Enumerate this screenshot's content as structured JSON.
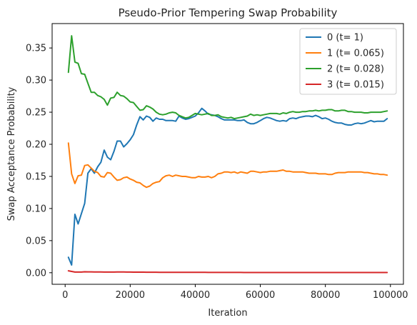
{
  "chart_data": {
    "type": "line",
    "title": "Pseudo-Prior Tempering Swap Probability",
    "xlabel": "Iteration",
    "ylabel": "Swap Acceptance Probability",
    "xlim": [
      -4000,
      104000
    ],
    "ylim": [
      -0.018,
      0.388
    ],
    "xticks": [
      0,
      20000,
      40000,
      60000,
      80000,
      100000
    ],
    "xtick_labels": [
      "0",
      "20000",
      "40000",
      "60000",
      "80000",
      "100000"
    ],
    "yticks": [
      0.0,
      0.05,
      0.1,
      0.15,
      0.2,
      0.25,
      0.3,
      0.35
    ],
    "ytick_labels": [
      "0.00",
      "0.05",
      "0.10",
      "0.15",
      "0.20",
      "0.25",
      "0.30",
      "0.35"
    ],
    "grid": false,
    "legend_position": "top-right",
    "x": [
      1000,
      2000,
      3000,
      4000,
      5000,
      6000,
      7000,
      8000,
      9000,
      10000,
      11000,
      12000,
      13000,
      14000,
      15000,
      16000,
      17000,
      18000,
      19000,
      20000,
      21000,
      22000,
      23000,
      24000,
      25000,
      26000,
      27000,
      28000,
      29000,
      30000,
      31000,
      32000,
      33000,
      34000,
      35000,
      36000,
      37000,
      38000,
      39000,
      40000,
      41000,
      42000,
      43000,
      44000,
      45000,
      46000,
      47000,
      48000,
      49000,
      50000,
      51000,
      52000,
      53000,
      54000,
      55000,
      56000,
      57000,
      58000,
      59000,
      60000,
      61000,
      62000,
      63000,
      64000,
      65000,
      66000,
      67000,
      68000,
      69000,
      70000,
      71000,
      72000,
      73000,
      74000,
      75000,
      76000,
      77000,
      78000,
      79000,
      80000,
      81000,
      82000,
      83000,
      84000,
      85000,
      86000,
      87000,
      88000,
      89000,
      90000,
      91000,
      92000,
      93000,
      94000,
      95000,
      96000,
      97000,
      98000,
      99000
    ],
    "series": [
      {
        "name": "0 (t= 1)",
        "color": "#1f77b4",
        "values": [
          0.024,
          0.012,
          0.091,
          0.076,
          0.092,
          0.108,
          0.155,
          0.162,
          0.155,
          0.165,
          0.172,
          0.191,
          0.18,
          0.176,
          0.189,
          0.205,
          0.205,
          0.196,
          0.201,
          0.207,
          0.215,
          0.23,
          0.243,
          0.238,
          0.244,
          0.242,
          0.236,
          0.241,
          0.239,
          0.239,
          0.237,
          0.237,
          0.237,
          0.236,
          0.244,
          0.241,
          0.239,
          0.24,
          0.242,
          0.244,
          0.249,
          0.256,
          0.252,
          0.247,
          0.246,
          0.245,
          0.243,
          0.24,
          0.238,
          0.238,
          0.238,
          0.238,
          0.237,
          0.237,
          0.238,
          0.234,
          0.232,
          0.232,
          0.234,
          0.237,
          0.24,
          0.242,
          0.241,
          0.239,
          0.237,
          0.236,
          0.237,
          0.236,
          0.24,
          0.241,
          0.24,
          0.242,
          0.243,
          0.244,
          0.244,
          0.243,
          0.245,
          0.243,
          0.24,
          0.241,
          0.239,
          0.236,
          0.234,
          0.233,
          0.233,
          0.231,
          0.23,
          0.23,
          0.232,
          0.233,
          0.232,
          0.233,
          0.235,
          0.237,
          0.235,
          0.236,
          0.236,
          0.236,
          0.24
        ]
      },
      {
        "name": "1 (t= 0.065)",
        "color": "#ff7f0e",
        "values": [
          0.202,
          0.154,
          0.139,
          0.151,
          0.152,
          0.167,
          0.168,
          0.163,
          0.158,
          0.156,
          0.15,
          0.149,
          0.156,
          0.155,
          0.149,
          0.144,
          0.145,
          0.148,
          0.149,
          0.146,
          0.144,
          0.141,
          0.14,
          0.136,
          0.133,
          0.135,
          0.139,
          0.141,
          0.142,
          0.148,
          0.151,
          0.152,
          0.15,
          0.152,
          0.151,
          0.15,
          0.15,
          0.149,
          0.148,
          0.148,
          0.15,
          0.149,
          0.149,
          0.15,
          0.148,
          0.15,
          0.154,
          0.155,
          0.157,
          0.157,
          0.156,
          0.157,
          0.155,
          0.157,
          0.156,
          0.155,
          0.158,
          0.158,
          0.157,
          0.156,
          0.157,
          0.157,
          0.158,
          0.158,
          0.158,
          0.159,
          0.16,
          0.158,
          0.158,
          0.157,
          0.157,
          0.157,
          0.157,
          0.156,
          0.155,
          0.155,
          0.155,
          0.154,
          0.154,
          0.154,
          0.153,
          0.153,
          0.155,
          0.156,
          0.156,
          0.156,
          0.157,
          0.157,
          0.157,
          0.157,
          0.157,
          0.156,
          0.156,
          0.155,
          0.154,
          0.154,
          0.153,
          0.153,
          0.152
        ]
      },
      {
        "name": "2 (t= 0.028)",
        "color": "#2ca02c",
        "values": [
          0.312,
          0.369,
          0.328,
          0.326,
          0.31,
          0.309,
          0.295,
          0.281,
          0.281,
          0.276,
          0.274,
          0.27,
          0.261,
          0.272,
          0.273,
          0.281,
          0.276,
          0.275,
          0.271,
          0.266,
          0.265,
          0.259,
          0.253,
          0.254,
          0.26,
          0.258,
          0.255,
          0.25,
          0.247,
          0.246,
          0.247,
          0.249,
          0.25,
          0.249,
          0.245,
          0.243,
          0.241,
          0.242,
          0.245,
          0.248,
          0.247,
          0.246,
          0.247,
          0.248,
          0.245,
          0.245,
          0.246,
          0.243,
          0.242,
          0.241,
          0.242,
          0.24,
          0.241,
          0.242,
          0.243,
          0.244,
          0.247,
          0.245,
          0.246,
          0.245,
          0.246,
          0.247,
          0.248,
          0.248,
          0.248,
          0.247,
          0.249,
          0.248,
          0.25,
          0.251,
          0.25,
          0.25,
          0.251,
          0.251,
          0.252,
          0.252,
          0.253,
          0.252,
          0.253,
          0.253,
          0.254,
          0.254,
          0.252,
          0.252,
          0.253,
          0.253,
          0.251,
          0.251,
          0.25,
          0.25,
          0.25,
          0.249,
          0.249,
          0.25,
          0.25,
          0.25,
          0.25,
          0.251,
          0.252
        ]
      },
      {
        "name": "3 (t= 0.015)",
        "color": "#d62728",
        "values": [
          0.003,
          0.002,
          0.001,
          0.001,
          0.001,
          0.0015,
          0.0014,
          0.0013,
          0.0012,
          0.0011,
          0.0011,
          0.001,
          0.001,
          0.001,
          0.001,
          0.0012,
          0.0011,
          0.0011,
          0.001,
          0.001,
          0.0009,
          0.0009,
          0.0009,
          0.0009,
          0.0008,
          0.0008,
          0.0008,
          0.0008,
          0.0007,
          0.0007,
          0.0007,
          0.0007,
          0.0007,
          0.0007,
          0.0006,
          0.0006,
          0.0006,
          0.0006,
          0.0006,
          0.0006,
          0.0006,
          0.0006,
          0.0006,
          0.0005,
          0.0005,
          0.0005,
          0.0005,
          0.0005,
          0.0005,
          0.0005,
          0.0005,
          0.0005,
          0.0005,
          0.0005,
          0.0004,
          0.0004,
          0.0004,
          0.0004,
          0.0004,
          0.0004,
          0.0004,
          0.0004,
          0.0004,
          0.0004,
          0.0004,
          0.0004,
          0.0004,
          0.0004,
          0.0004,
          0.0004,
          0.0004,
          0.0003,
          0.0003,
          0.0003,
          0.0003,
          0.0003,
          0.0003,
          0.0003,
          0.0003,
          0.0003,
          0.0003,
          0.0003,
          0.0003,
          0.0003,
          0.0003,
          0.0003,
          0.0003,
          0.0003,
          0.0003,
          0.0003,
          0.0003,
          0.0003,
          0.0003,
          0.0003,
          0.0003,
          0.0003,
          0.0003,
          0.0003,
          0.0003
        ]
      }
    ]
  }
}
